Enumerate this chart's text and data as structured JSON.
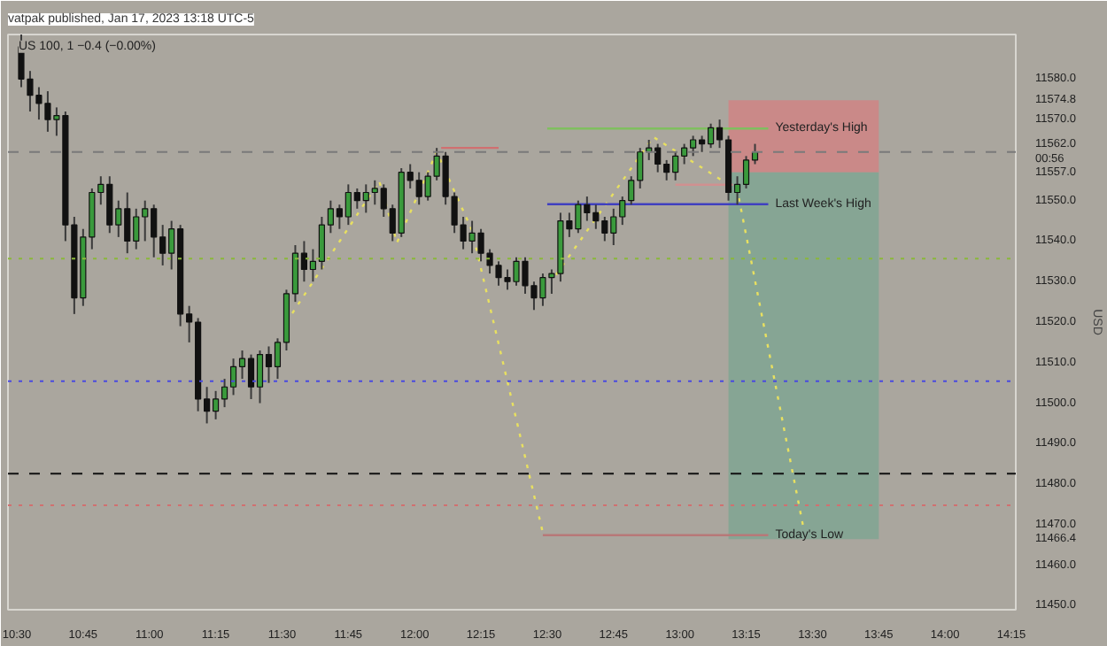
{
  "chart_data": {
    "type": "candlestick",
    "title": "vatpak published, Jan 17, 2023 13:18 UTC-5",
    "subtitle": "US 100, 1  −0.4 (−0.00%)",
    "ylabel": "USD",
    "x": [
      "2023-01-17T10:31",
      "2023-01-17T10:33",
      "2023-01-17T10:35",
      "2023-01-17T10:37",
      "2023-01-17T10:39",
      "2023-01-17T10:41",
      "2023-01-17T10:43",
      "2023-01-17T10:45",
      "2023-01-17T10:47",
      "2023-01-17T10:49",
      "2023-01-17T10:51",
      "2023-01-17T10:53",
      "2023-01-17T10:55",
      "2023-01-17T10:57",
      "2023-01-17T10:59",
      "2023-01-17T11:01",
      "2023-01-17T11:03",
      "2023-01-17T11:05",
      "2023-01-17T11:07",
      "2023-01-17T11:09",
      "2023-01-17T11:11",
      "2023-01-17T11:13",
      "2023-01-17T11:15",
      "2023-01-17T11:17",
      "2023-01-17T11:19",
      "2023-01-17T11:21",
      "2023-01-17T11:23",
      "2023-01-17T11:25",
      "2023-01-17T11:27",
      "2023-01-17T11:29",
      "2023-01-17T11:31",
      "2023-01-17T11:33",
      "2023-01-17T11:35",
      "2023-01-17T11:37",
      "2023-01-17T11:39",
      "2023-01-17T11:41",
      "2023-01-17T11:43",
      "2023-01-17T11:45",
      "2023-01-17T11:47",
      "2023-01-17T11:49",
      "2023-01-17T11:51",
      "2023-01-17T11:53",
      "2023-01-17T11:55",
      "2023-01-17T11:57",
      "2023-01-17T11:59",
      "2023-01-17T12:01",
      "2023-01-17T12:03",
      "2023-01-17T12:05",
      "2023-01-17T12:07",
      "2023-01-17T12:09",
      "2023-01-17T12:11",
      "2023-01-17T12:13",
      "2023-01-17T12:15",
      "2023-01-17T12:17",
      "2023-01-17T12:19",
      "2023-01-17T12:21",
      "2023-01-17T12:23",
      "2023-01-17T12:25",
      "2023-01-17T12:27",
      "2023-01-17T12:29",
      "2023-01-17T12:31",
      "2023-01-17T12:33",
      "2023-01-17T12:35",
      "2023-01-17T12:37",
      "2023-01-17T12:39",
      "2023-01-17T12:41",
      "2023-01-17T12:43",
      "2023-01-17T12:45",
      "2023-01-17T12:47",
      "2023-01-17T12:49",
      "2023-01-17T12:51",
      "2023-01-17T12:53",
      "2023-01-17T12:55",
      "2023-01-17T12:57",
      "2023-01-17T12:59",
      "2023-01-17T13:01",
      "2023-01-17T13:03",
      "2023-01-17T13:05",
      "2023-01-17T13:07",
      "2023-01-17T13:09",
      "2023-01-17T13:11",
      "2023-01-17T13:13",
      "2023-01-17T13:15",
      "2023-01-17T13:17"
    ],
    "ohlc": [
      [
        11588,
        11591,
        11578,
        11580
      ],
      [
        11580,
        11582,
        11572,
        11576
      ],
      [
        11576,
        11578,
        11570,
        11574
      ],
      [
        11574,
        11577,
        11567,
        11570
      ],
      [
        11570,
        11573,
        11566,
        11571
      ],
      [
        11571,
        11572,
        11540,
        11544
      ],
      [
        11544,
        11546,
        11522,
        11526
      ],
      [
        11526,
        11543,
        11524,
        11541
      ],
      [
        11541,
        11553,
        11538,
        11552
      ],
      [
        11552,
        11556,
        11549,
        11554
      ],
      [
        11554,
        11556,
        11542,
        11544
      ],
      [
        11544,
        11550,
        11541,
        11548
      ],
      [
        11548,
        11552,
        11537,
        11540
      ],
      [
        11540,
        11548,
        11538,
        11546
      ],
      [
        11546,
        11550,
        11540,
        11548
      ],
      [
        11548,
        11549,
        11536,
        11541
      ],
      [
        11541,
        11544,
        11534,
        11537
      ],
      [
        11537,
        11545,
        11533,
        11543
      ],
      [
        11543,
        11544,
        11519,
        11522
      ],
      [
        11522,
        11524,
        11515,
        11520
      ],
      [
        11520,
        11521,
        11498,
        11501
      ],
      [
        11501,
        11504,
        11495,
        11498
      ],
      [
        11498,
        11503,
        11496,
        11501
      ],
      [
        11501,
        11506,
        11499,
        11504
      ],
      [
        11504,
        11511,
        11502,
        11509
      ],
      [
        11509,
        11513,
        11506,
        11511
      ],
      [
        11511,
        11512,
        11501,
        11504
      ],
      [
        11504,
        11513,
        11500,
        11512
      ],
      [
        11512,
        11514,
        11505,
        11509
      ],
      [
        11509,
        11516,
        11506,
        11515
      ],
      [
        11515,
        11528,
        11513,
        11527
      ],
      [
        11527,
        11539,
        11525,
        11537
      ],
      [
        11537,
        11540,
        11530,
        11533
      ],
      [
        11533,
        11538,
        11530,
        11535
      ],
      [
        11535,
        11546,
        11533,
        11544
      ],
      [
        11544,
        11550,
        11542,
        11548
      ],
      [
        11548,
        11549,
        11543,
        11546
      ],
      [
        11546,
        11554,
        11544,
        11552
      ],
      [
        11552,
        11553,
        11548,
        11550
      ],
      [
        11550,
        11554,
        11547,
        11552
      ],
      [
        11552,
        11555,
        11549,
        11553
      ],
      [
        11553,
        11554,
        11546,
        11548
      ],
      [
        11548,
        11549,
        11540,
        11542
      ],
      [
        11542,
        11558,
        11541,
        11557
      ],
      [
        11557,
        11559,
        11553,
        11555
      ],
      [
        11555,
        11557,
        11549,
        11551
      ],
      [
        11551,
        11557,
        11550,
        11556
      ],
      [
        11556,
        11563,
        11555,
        11561
      ],
      [
        11561,
        11562,
        11549,
        11551
      ],
      [
        11551,
        11552,
        11542,
        11544
      ],
      [
        11544,
        11546,
        11538,
        11540
      ],
      [
        11540,
        11545,
        11537,
        11542
      ],
      [
        11542,
        11543,
        11535,
        11537
      ],
      [
        11537,
        11538,
        11532,
        11534
      ],
      [
        11534,
        11535,
        11529,
        11531
      ],
      [
        11531,
        11533,
        11528,
        11530
      ],
      [
        11530,
        11536,
        11529,
        11535
      ],
      [
        11535,
        11536,
        11527,
        11529
      ],
      [
        11529,
        11530,
        11523,
        11526
      ],
      [
        11526,
        11532,
        11524,
        11531
      ],
      [
        11531,
        11533,
        11527,
        11532
      ],
      [
        11532,
        11547,
        11530,
        11545
      ],
      [
        11545,
        11547,
        11541,
        11543
      ],
      [
        11543,
        11550,
        11542,
        11549
      ],
      [
        11549,
        11551,
        11545,
        11547
      ],
      [
        11547,
        11549,
        11543,
        11545
      ],
      [
        11545,
        11546,
        11540,
        11542
      ],
      [
        11542,
        11548,
        11539,
        11546
      ],
      [
        11546,
        11551,
        11544,
        11550
      ],
      [
        11550,
        11556,
        11549,
        11555
      ],
      [
        11555,
        11563,
        11553,
        11562
      ],
      [
        11562,
        11565,
        11560,
        11563
      ],
      [
        11563,
        11564,
        11557,
        11559
      ],
      [
        11559,
        11560,
        11555,
        11557
      ],
      [
        11557,
        11562,
        11555,
        11561
      ],
      [
        11561,
        11564,
        11559,
        11563
      ],
      [
        11563,
        11566,
        11561,
        11565
      ],
      [
        11565,
        11566,
        11562,
        11564
      ],
      [
        11564,
        11569,
        11563,
        11568
      ],
      [
        11568,
        11570,
        11563,
        11565
      ],
      [
        11565,
        11566,
        11550,
        11552
      ],
      [
        11552,
        11556,
        11549,
        11554
      ],
      [
        11554,
        11561,
        11553,
        11560
      ],
      [
        11560,
        11564,
        11559,
        11562
      ]
    ],
    "colors": [
      "#111111",
      "#111111",
      "#111111",
      "#111111",
      "#3a9a3c",
      "#111111",
      "#111111",
      "#3a9a3c",
      "#3a9a3c",
      "#3a9a3c",
      "#111111",
      "#3a9a3c",
      "#111111",
      "#3a9a3c",
      "#3a9a3c",
      "#111111",
      "#111111",
      "#3a9a3c",
      "#111111",
      "#111111",
      "#111111",
      "#111111",
      "#3a9a3c",
      "#3a9a3c",
      "#3a9a3c",
      "#3a9a3c",
      "#111111",
      "#3a9a3c",
      "#111111",
      "#3a9a3c",
      "#3a9a3c",
      "#3a9a3c",
      "#111111",
      "#3a9a3c",
      "#3a9a3c",
      "#3a9a3c",
      "#111111",
      "#3a9a3c",
      "#111111",
      "#3a9a3c",
      "#3a9a3c",
      "#111111",
      "#111111",
      "#3a9a3c",
      "#111111",
      "#111111",
      "#3a9a3c",
      "#3a9a3c",
      "#111111",
      "#111111",
      "#111111",
      "#3a9a3c",
      "#111111",
      "#111111",
      "#111111",
      "#111111",
      "#3a9a3c",
      "#111111",
      "#111111",
      "#3a9a3c",
      "#3a9a3c",
      "#3a9a3c",
      "#111111",
      "#3a9a3c",
      "#111111",
      "#111111",
      "#111111",
      "#3a9a3c",
      "#3a9a3c",
      "#3a9a3c",
      "#3a9a3c",
      "#3a9a3c",
      "#111111",
      "#111111",
      "#3a9a3c",
      "#3a9a3c",
      "#3a9a3c",
      "#111111",
      "#3a9a3c",
      "#111111",
      "#111111",
      "#3a9a3c",
      "#3a9a3c",
      "#3a9a3c"
    ],
    "series": [
      {
        "type": "bar",
        "x": [
          "2023-01-17T13:28"
        ],
        "values": [
          17.8
        ],
        "base": [
          11557
        ],
        "color": "#d08484"
      },
      {
        "type": "bar",
        "x": [
          "2023-01-17T13:28"
        ],
        "values": [
          90.6
        ],
        "base": [
          11466.4
        ],
        "color": "#80a592"
      },
      {
        "type": "line",
        "x": [
          "2023-01-17T11:31",
          "2023-01-17T11:52",
          "2023-01-17T11:56",
          "2023-01-17T12:05",
          "2023-01-17T12:13",
          "2023-01-17T12:29"
        ],
        "values": [
          11520,
          11554.8,
          11539.6,
          11562,
          11542.6,
          11468
        ],
        "color": "#e8e060",
        "line_style": "dotted"
      },
      {
        "type": "line",
        "x": [
          "2023-01-17T12:32",
          "2023-01-17T12:54",
          "2023-01-17T13:13",
          "2023-01-17T13:28"
        ],
        "values": [
          11531.7,
          11565.7,
          11552.6,
          11469
        ],
        "color": "#e8e060",
        "line_style": "dotted"
      },
      {
        "type": "line",
        "name": "Yesterday's High",
        "x": [
          "2023-01-17T12:30",
          "2023-01-17T13:20"
        ],
        "values": [
          11567.8,
          11567.8
        ],
        "color": "#7fbf5f",
        "line_style": "solid"
      },
      {
        "type": "line",
        "name": "Last Week's High",
        "x": [
          "2023-01-17T12:30",
          "2023-01-17T13:20"
        ],
        "values": [
          11549.1,
          11549.1
        ],
        "color": "#4040c0",
        "line_style": "solid"
      },
      {
        "type": "line",
        "name": "Today's Low",
        "x": [
          "2023-01-17T12:29",
          "2023-01-17T13:20"
        ],
        "values": [
          11467.4,
          11467.4
        ],
        "color": "#b87878",
        "line_style": "solid"
      },
      {
        "type": "line",
        "x": [
          "2023-01-17T12:06",
          "2023-01-17T12:19"
        ],
        "values": [
          11563,
          11563
        ],
        "color": "#d07070",
        "line_style": "solid"
      },
      {
        "type": "line",
        "x": [
          "2023-01-17T12:59",
          "2023-01-17T13:12"
        ],
        "values": [
          11553.9,
          11553.9
        ],
        "color": "#d09090",
        "line_style": "solid"
      }
    ],
    "ref_lines": [
      {
        "axis": "y",
        "value": 11562,
        "color": "#7a7a7a",
        "line_style": "dashed"
      },
      {
        "axis": "y",
        "value": 11535.7,
        "color": "#8ab83a",
        "line_style": "dotted"
      },
      {
        "axis": "y",
        "value": 11505.4,
        "color": "#4a4ae0",
        "line_style": "dotted"
      },
      {
        "axis": "y",
        "value": 11482.6,
        "color": "#111111",
        "line_style": "dashed"
      },
      {
        "axis": "y",
        "value": 11474.8,
        "color": "#d07070",
        "line_style": "dotted"
      }
    ],
    "xlim": [
      "2023-01-17T10:28",
      "2023-01-17T14:16"
    ],
    "ylim": [
      11449,
      11591
    ],
    "xticks": [
      {
        "value": "2023-01-17T10:30",
        "label": "10:30"
      },
      {
        "value": "2023-01-17T10:45",
        "label": "10:45"
      },
      {
        "value": "2023-01-17T11:00",
        "label": "11:00"
      },
      {
        "value": "2023-01-17T11:15",
        "label": "11:15"
      },
      {
        "value": "2023-01-17T11:30",
        "label": "11:30"
      },
      {
        "value": "2023-01-17T11:45",
        "label": "11:45"
      },
      {
        "value": "2023-01-17T12:00",
        "label": "12:00"
      },
      {
        "value": "2023-01-17T12:15",
        "label": "12:15"
      },
      {
        "value": "2023-01-17T12:30",
        "label": "12:30"
      },
      {
        "value": "2023-01-17T12:45",
        "label": "12:45"
      },
      {
        "value": "2023-01-17T13:00",
        "label": "13:00"
      },
      {
        "value": "2023-01-17T13:15",
        "label": "13:15"
      },
      {
        "value": "2023-01-17T13:30",
        "label": "13:30"
      },
      {
        "value": "2023-01-17T13:45",
        "label": "13:45"
      },
      {
        "value": "2023-01-17T14:00",
        "label": "14:00"
      },
      {
        "value": "2023-01-17T14:15",
        "label": "14:15"
      }
    ],
    "yticks": [
      {
        "value": 11450,
        "label": "11450.0"
      },
      {
        "value": 11460,
        "label": "11460.0"
      },
      {
        "value": 11470,
        "label": "11470.0"
      },
      {
        "value": 11480,
        "label": "11480.0"
      },
      {
        "value": 11490,
        "label": "11490.0"
      },
      {
        "value": 11500,
        "label": "11500.0"
      },
      {
        "value": 11510,
        "label": "11510.0"
      },
      {
        "value": 11520,
        "label": "11520.0"
      },
      {
        "value": 11530,
        "label": "11530.0"
      },
      {
        "value": 11540,
        "label": "11540.0"
      },
      {
        "value": 11550,
        "label": "11550.0"
      },
      {
        "value": 11570,
        "label": "11570.0"
      },
      {
        "value": 11580,
        "label": "11580.0"
      },
      {
        "value": 11574.8,
        "label": "11574.8"
      },
      {
        "value": 11562,
        "label": "11562.0\n00:56"
      },
      {
        "value": 11557,
        "label": "11557.0"
      },
      {
        "value": 11466.4,
        "label": "11466.4"
      }
    ],
    "grid": false
  }
}
